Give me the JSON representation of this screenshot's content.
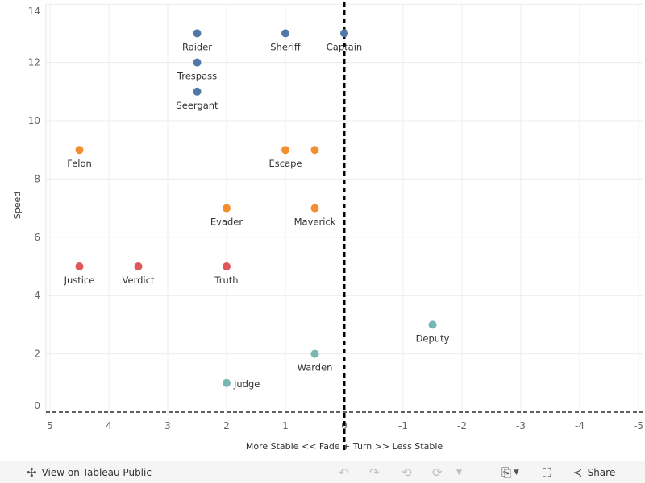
{
  "chart_data": {
    "type": "scatter",
    "title": "",
    "xlabel": "More Stable   <<  Fade + Turn  >>   Less Stable",
    "ylabel": "Speed",
    "xlim": [
      5,
      -5
    ],
    "ylim": [
      -0.2,
      14.1
    ],
    "x_ticks": [
      "5",
      "4",
      "3",
      "2",
      "1",
      "0",
      "-1",
      "-2",
      "-3",
      "-4",
      "-5"
    ],
    "y_ticks": [
      "0",
      "2",
      "4",
      "6",
      "8",
      "10",
      "12",
      "14"
    ],
    "reference_lines": [
      {
        "axis": "x",
        "value": 0,
        "style": "dashed"
      },
      {
        "axis": "y",
        "value": 0,
        "style": "dashed"
      }
    ],
    "grid": true,
    "series": [
      {
        "name": "blue",
        "color": "#4e79a7",
        "points": [
          {
            "label": "Raider",
            "x": 2.5,
            "y": 13
          },
          {
            "label": "Sheriff",
            "x": 1,
            "y": 13
          },
          {
            "label": "Captain",
            "x": 0,
            "y": 13
          },
          {
            "label": "Trespass",
            "x": 2.5,
            "y": 12
          },
          {
            "label": "Seergant",
            "x": 2.5,
            "y": 11
          }
        ]
      },
      {
        "name": "orange",
        "color": "#f28e2b",
        "points": [
          {
            "label": "Felon",
            "x": 4.5,
            "y": 9
          },
          {
            "label": "Escape",
            "x": 1,
            "y": 9
          },
          {
            "label": "",
            "x": 0.5,
            "y": 9
          },
          {
            "label": "Evader",
            "x": 2,
            "y": 7
          },
          {
            "label": "Maverick",
            "x": 0.5,
            "y": 7
          }
        ]
      },
      {
        "name": "red",
        "color": "#e15759",
        "points": [
          {
            "label": "Justice",
            "x": 4.5,
            "y": 5
          },
          {
            "label": "Verdict",
            "x": 3.5,
            "y": 5
          },
          {
            "label": "Truth",
            "x": 2,
            "y": 5
          }
        ]
      },
      {
        "name": "teal",
        "color": "#76b7b2",
        "points": [
          {
            "label": "Deputy",
            "x": -1.5,
            "y": 3
          },
          {
            "label": "Warden",
            "x": 0.5,
            "y": 2
          },
          {
            "label": "Judge",
            "x": 2,
            "y": 1,
            "label_pos": "right"
          }
        ]
      }
    ]
  },
  "toolbar": {
    "view_label": "View on Tableau Public",
    "share_label": "Share"
  }
}
